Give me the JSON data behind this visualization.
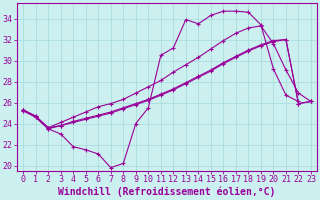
{
  "xlabel": "Windchill (Refroidissement éolien,°C)",
  "bg_color": "#ccefef",
  "grid_color": "#aadddd",
  "line_color": "#990099",
  "xlim": [
    -0.5,
    23.5
  ],
  "ylim": [
    19.5,
    35.5
  ],
  "yticks": [
    20,
    22,
    24,
    26,
    28,
    30,
    32,
    34
  ],
  "xticks": [
    0,
    1,
    2,
    3,
    4,
    5,
    6,
    7,
    8,
    9,
    10,
    11,
    12,
    13,
    14,
    15,
    16,
    17,
    18,
    19,
    20,
    21,
    22,
    23
  ],
  "line1_x": [
    0,
    1,
    2,
    3,
    4,
    5,
    6,
    7,
    8,
    9,
    10,
    11,
    12,
    13,
    14,
    15,
    16,
    17,
    18,
    19,
    20,
    21,
    22
  ],
  "line1_y": [
    25.3,
    24.6,
    23.5,
    23.0,
    21.8,
    21.5,
    21.1,
    19.8,
    20.2,
    24.0,
    25.5,
    30.5,
    31.2,
    33.9,
    33.5,
    34.3,
    34.7,
    34.7,
    34.6,
    33.4,
    29.2,
    26.7,
    26.1
  ],
  "line2_x": [
    0,
    1,
    2,
    3,
    4,
    5,
    6,
    7,
    8,
    9,
    10,
    11,
    12,
    13,
    14,
    15,
    16,
    17,
    18,
    19,
    20,
    21,
    22,
    23
  ],
  "line2_y": [
    25.3,
    24.7,
    23.6,
    23.8,
    24.1,
    24.4,
    24.7,
    25.0,
    25.4,
    25.8,
    26.2,
    26.7,
    27.2,
    27.8,
    28.4,
    29.0,
    29.7,
    30.3,
    30.9,
    31.4,
    31.8,
    32.0,
    25.9,
    26.1
  ],
  "line3_x": [
    0,
    1,
    2,
    3,
    4,
    5,
    6,
    7,
    8,
    9,
    10,
    11,
    12,
    13,
    14,
    15,
    16,
    17,
    18,
    19,
    20,
    21,
    22,
    23
  ],
  "line3_y": [
    25.3,
    24.7,
    23.6,
    24.1,
    24.6,
    25.1,
    25.6,
    25.9,
    26.3,
    26.9,
    27.5,
    28.1,
    28.9,
    29.6,
    30.3,
    31.1,
    31.9,
    32.6,
    33.1,
    33.3,
    31.6,
    29.1,
    26.9,
    26.1
  ],
  "line4_x": [
    0,
    1,
    2,
    3,
    4,
    5,
    6,
    7,
    8,
    9,
    10,
    11,
    12,
    13,
    14,
    15,
    16,
    17,
    18,
    19,
    20,
    21,
    22,
    23
  ],
  "line4_y": [
    25.2,
    24.6,
    23.5,
    23.8,
    24.2,
    24.5,
    24.8,
    25.1,
    25.5,
    25.9,
    26.3,
    26.8,
    27.3,
    27.9,
    28.5,
    29.1,
    29.8,
    30.4,
    31.0,
    31.5,
    31.9,
    32.0,
    25.9,
    26.1
  ],
  "xlabel_fontsize": 7,
  "tick_fontsize": 6
}
